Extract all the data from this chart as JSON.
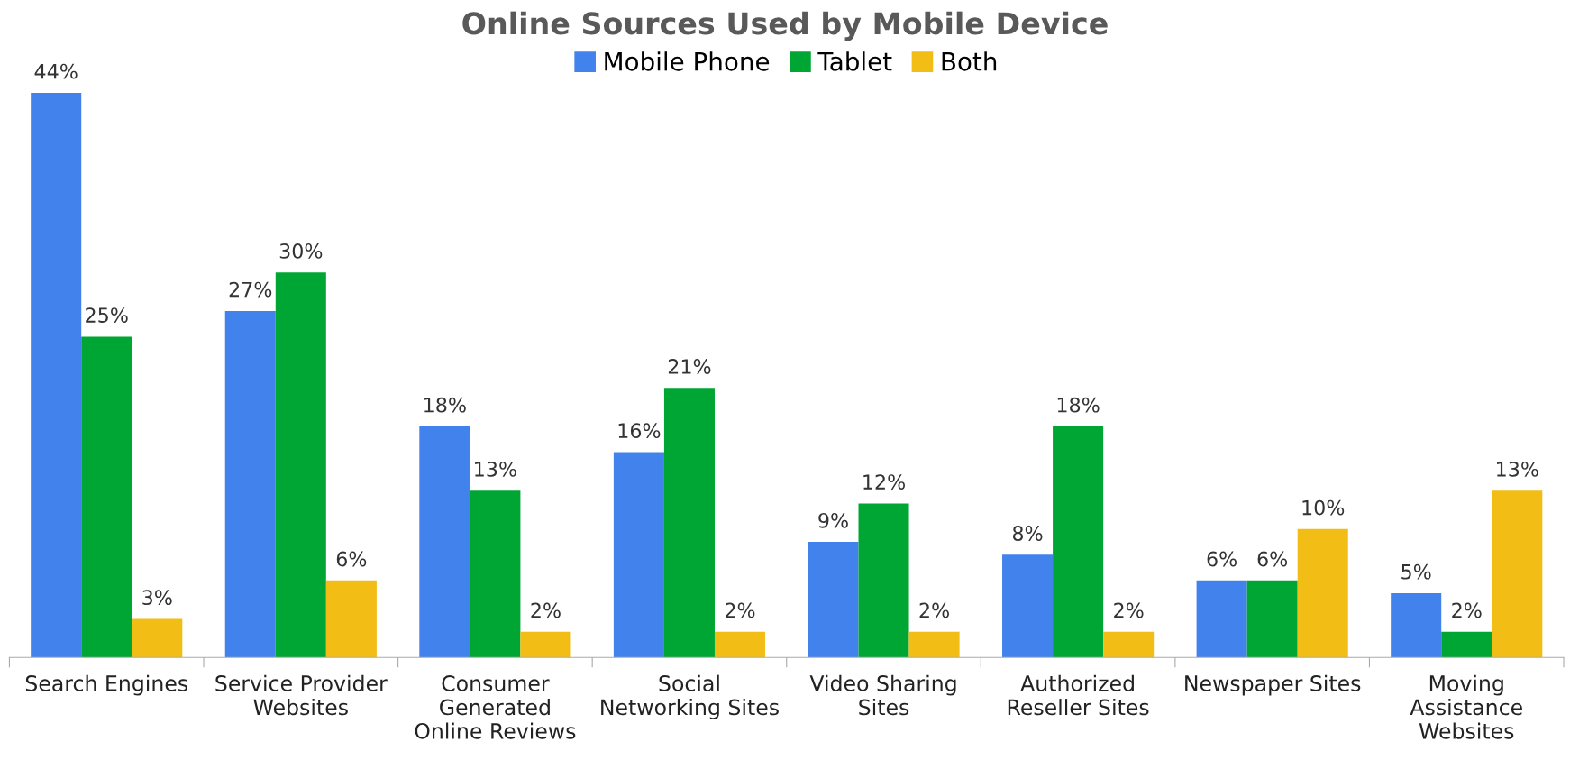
{
  "chart_data": {
    "type": "bar",
    "title": "Online Sources Used by Mobile Device",
    "categories": [
      "Search Engines",
      "Service Provider\nWebsites",
      "Consumer\nGenerated\nOnline Reviews",
      "Social\nNetworking Sites",
      "Video Sharing\nSites",
      "Authorized\nReseller Sites",
      "Newspaper Sites",
      "Moving\nAssistance\nWebsites"
    ],
    "series": [
      {
        "name": "Mobile Phone",
        "color": "#4282ec",
        "values": [
          44,
          27,
          18,
          16,
          9,
          8,
          6,
          5
        ],
        "value_labels": [
          "44%",
          "27%",
          "18%",
          "16%",
          "9%",
          "8%",
          "6%",
          "5%"
        ]
      },
      {
        "name": "Tablet",
        "color": "#00a633",
        "values": [
          25,
          30,
          13,
          21,
          12,
          18,
          6,
          2
        ],
        "value_labels": [
          "25%",
          "30%",
          "13%",
          "21%",
          "12%",
          "18%",
          "6%",
          "2%"
        ]
      },
      {
        "name": "Both",
        "color": "#f2bd14",
        "values": [
          3,
          6,
          2,
          2,
          2,
          2,
          10,
          13
        ],
        "value_labels": [
          "3%",
          "6%",
          "2%",
          "2%",
          "2%",
          "2%",
          "10%",
          "13%"
        ]
      }
    ],
    "legend": "top",
    "grid": false
  }
}
